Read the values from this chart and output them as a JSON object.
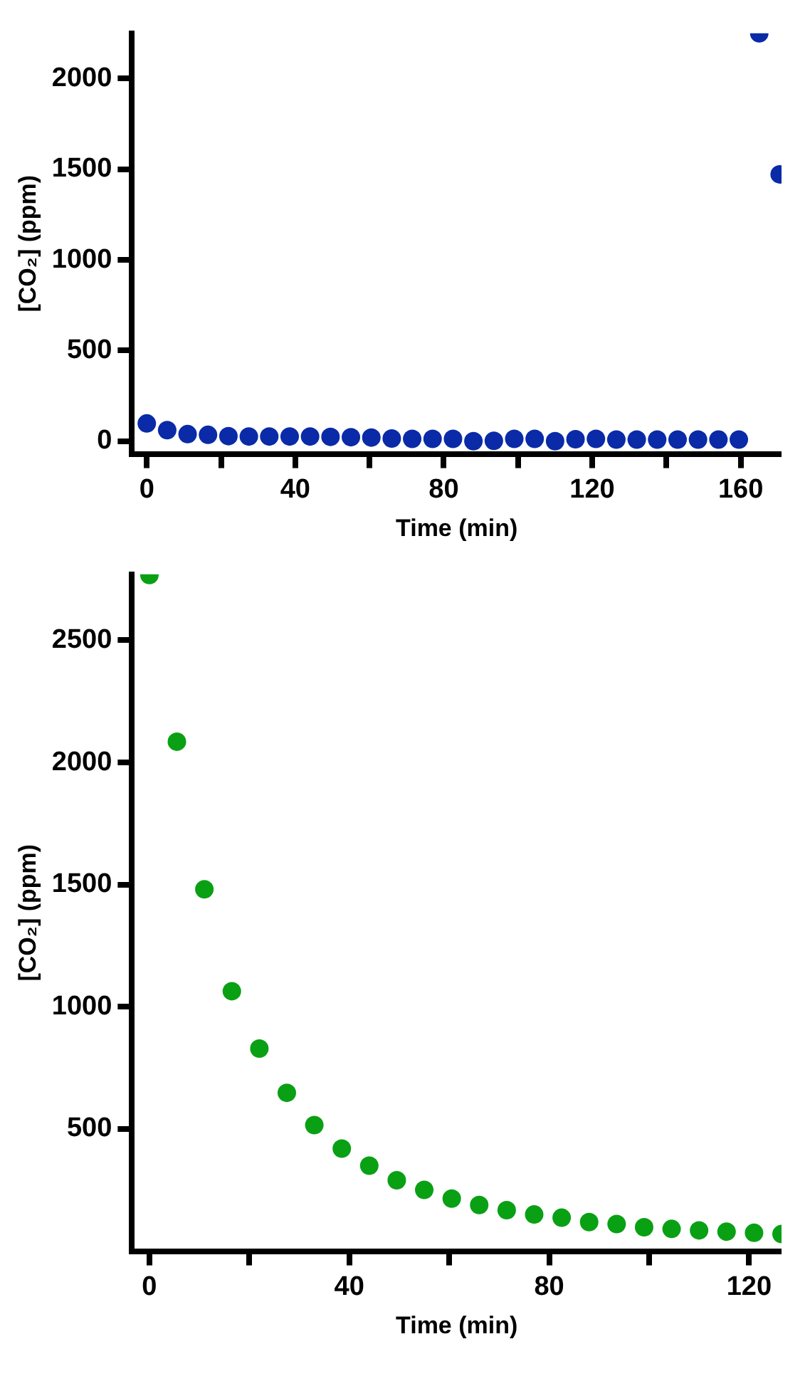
{
  "chart_data": [
    {
      "type": "scatter",
      "xlabel": "Time (min)",
      "ylabel": "[CO₂] (ppm)",
      "marker": "circle",
      "grid": false,
      "legend": false,
      "xlim": [
        -4,
        171
      ],
      "ylim": [
        -70,
        2250
      ],
      "xticks": [
        0,
        {
          "value": 20,
          "label": null
        },
        40,
        {
          "value": 60,
          "label": null
        },
        80,
        {
          "value": 100,
          "label": null
        },
        120,
        {
          "value": 140,
          "label": null
        },
        160
      ],
      "yticks": [
        0,
        500,
        1000,
        1500,
        2000
      ],
      "series": [
        {
          "color": "#0a2aa8",
          "x": [
            0,
            5.5,
            11,
            16.5,
            22,
            27.5,
            33,
            38.5,
            44,
            49.5,
            55,
            60.5,
            66,
            71.5,
            77,
            82.5,
            88,
            93.5,
            99,
            104.5,
            110,
            115.5,
            121,
            126.5,
            132,
            137.5,
            143,
            148.5,
            154,
            159.5,
            165,
            170.5
          ],
          "values": [
            98,
            61,
            39,
            35,
            28,
            26,
            26,
            26,
            26,
            24,
            22,
            20,
            15,
            13,
            13,
            13,
            0,
            2,
            13,
            13,
            0,
            11,
            13,
            9,
            9,
            9,
            9,
            9,
            9,
            9,
            2250,
            1472
          ]
        }
      ]
    },
    {
      "type": "scatter",
      "xlabel": "Time (min)",
      "ylabel": "[CO₂] (ppm)",
      "marker": "circle",
      "grid": false,
      "legend": false,
      "xlim": [
        -3.5,
        126.5
      ],
      "ylim": [
        0,
        2770
      ],
      "xticks": [
        0,
        {
          "value": 20,
          "label": null
        },
        40,
        {
          "value": 60,
          "label": null
        },
        80,
        {
          "value": 100,
          "label": null
        },
        120
      ],
      "yticks": [
        500,
        1000,
        1500,
        2000,
        2500
      ],
      "series": [
        {
          "color": "#0aa014",
          "x": [
            0,
            5.5,
            11,
            16.5,
            22,
            27.5,
            33,
            38.5,
            44,
            49.5,
            55,
            60.5,
            66,
            71.5,
            77,
            82.5,
            88,
            93.5,
            99,
            104.5,
            110,
            115.5,
            121,
            126.5
          ],
          "values": [
            2767,
            2085,
            1481,
            1064,
            829,
            648,
            516,
            420,
            350,
            290,
            251,
            215,
            189,
            168,
            150,
            137,
            119,
            111,
            98,
            91,
            85,
            80,
            75,
            70
          ]
        }
      ]
    }
  ]
}
